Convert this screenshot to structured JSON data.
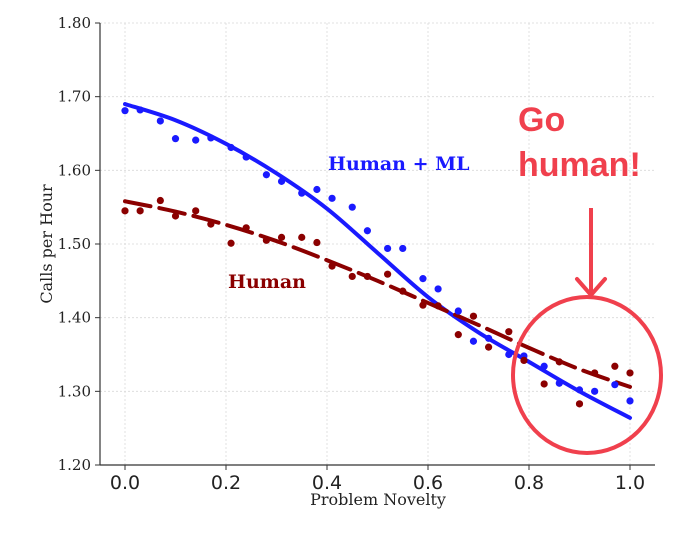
{
  "chart_data": {
    "type": "scatter",
    "xlabel": "Problem Novelty",
    "ylabel": "Calls per Hour",
    "xlim": [
      -0.04,
      1.05
    ],
    "ylim": [
      1.2,
      1.8
    ],
    "xticks": [
      0.0,
      0.2,
      0.4,
      0.6,
      0.8,
      1.0
    ],
    "xtick_labels": [
      "0.0",
      "0.2",
      "0.4",
      "0.6",
      "0.8",
      "1.0"
    ],
    "yticks": [
      1.2,
      1.3,
      1.4,
      1.5,
      1.6,
      1.7,
      1.8
    ],
    "ytick_labels": [
      "1.20",
      "1.30",
      "1.40",
      "1.50",
      "1.60",
      "1.70",
      "1.80"
    ],
    "grid": true,
    "series": [
      {
        "name": "Human + ML",
        "color": "#1a1aff",
        "line_style": "solid",
        "points": [
          [
            0.0,
            1.681
          ],
          [
            0.03,
            1.682
          ],
          [
            0.07,
            1.667
          ],
          [
            0.1,
            1.643
          ],
          [
            0.14,
            1.641
          ],
          [
            0.17,
            1.644
          ],
          [
            0.21,
            1.631
          ],
          [
            0.24,
            1.618
          ],
          [
            0.28,
            1.594
          ],
          [
            0.31,
            1.585
          ],
          [
            0.35,
            1.569
          ],
          [
            0.38,
            1.574
          ],
          [
            0.41,
            1.562
          ],
          [
            0.45,
            1.55
          ],
          [
            0.48,
            1.518
          ],
          [
            0.52,
            1.494
          ],
          [
            0.55,
            1.494
          ],
          [
            0.59,
            1.453
          ],
          [
            0.62,
            1.439
          ],
          [
            0.66,
            1.409
          ],
          [
            0.69,
            1.368
          ],
          [
            0.72,
            1.372
          ],
          [
            0.76,
            1.35
          ],
          [
            0.79,
            1.348
          ],
          [
            0.83,
            1.334
          ],
          [
            0.86,
            1.311
          ],
          [
            0.9,
            1.302
          ],
          [
            0.93,
            1.3
          ],
          [
            0.97,
            1.309
          ],
          [
            1.0,
            1.287
          ]
        ],
        "fit": [
          [
            0.0,
            1.69
          ],
          [
            0.1,
            1.668
          ],
          [
            0.2,
            1.636
          ],
          [
            0.3,
            1.596
          ],
          [
            0.4,
            1.548
          ],
          [
            0.5,
            1.488
          ],
          [
            0.6,
            1.428
          ],
          [
            0.7,
            1.38
          ],
          [
            0.8,
            1.34
          ],
          [
            0.9,
            1.3
          ],
          [
            1.0,
            1.264
          ]
        ]
      },
      {
        "name": "Human",
        "color": "#8b0000",
        "line_style": "dashed",
        "points": [
          [
            0.0,
            1.545
          ],
          [
            0.03,
            1.545
          ],
          [
            0.07,
            1.559
          ],
          [
            0.1,
            1.538
          ],
          [
            0.14,
            1.545
          ],
          [
            0.17,
            1.527
          ],
          [
            0.21,
            1.501
          ],
          [
            0.24,
            1.522
          ],
          [
            0.28,
            1.505
          ],
          [
            0.31,
            1.509
          ],
          [
            0.35,
            1.509
          ],
          [
            0.38,
            1.502
          ],
          [
            0.41,
            1.47
          ],
          [
            0.45,
            1.456
          ],
          [
            0.48,
            1.456
          ],
          [
            0.52,
            1.459
          ],
          [
            0.55,
            1.436
          ],
          [
            0.59,
            1.417
          ],
          [
            0.62,
            1.416
          ],
          [
            0.66,
            1.377
          ],
          [
            0.69,
            1.402
          ],
          [
            0.72,
            1.36
          ],
          [
            0.76,
            1.381
          ],
          [
            0.79,
            1.342
          ],
          [
            0.83,
            1.31
          ],
          [
            0.86,
            1.34
          ],
          [
            0.9,
            1.283
          ],
          [
            0.93,
            1.325
          ],
          [
            0.97,
            1.334
          ],
          [
            1.0,
            1.325
          ]
        ],
        "fit": [
          [
            0.0,
            1.558
          ],
          [
            0.1,
            1.544
          ],
          [
            0.2,
            1.526
          ],
          [
            0.3,
            1.504
          ],
          [
            0.4,
            1.478
          ],
          [
            0.5,
            1.45
          ],
          [
            0.6,
            1.42
          ],
          [
            0.7,
            1.39
          ],
          [
            0.8,
            1.359
          ],
          [
            0.9,
            1.33
          ],
          [
            1.0,
            1.306
          ]
        ]
      }
    ],
    "annotations": [
      {
        "text_lines": [
          "Go",
          "human!"
        ],
        "color": "#f0404d"
      }
    ]
  }
}
